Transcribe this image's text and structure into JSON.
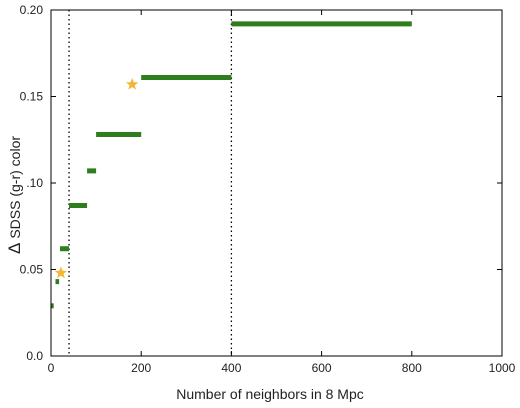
{
  "chart_data": {
    "type": "line",
    "xlabel": "Number of neighbors in 8 Mpc",
    "ylabel_symbol": "Δ",
    "ylabel_text": "SDSS (g-r) color",
    "xlim": [
      0,
      1000
    ],
    "ylim": [
      0,
      0.2
    ],
    "x_ticks": [
      0,
      200,
      400,
      600,
      800,
      1000
    ],
    "x_tick_labels": [
      "0",
      "200",
      "400",
      "600",
      "800",
      "1000"
    ],
    "y_ticks": [
      0,
      0.05,
      0.1,
      0.15,
      0.2
    ],
    "y_tick_labels": [
      "0.0",
      "0.05",
      ".10",
      "0.15",
      "0.20"
    ],
    "grid": false,
    "colors": {
      "segments": "#2e7d1e",
      "stars": "#f2b632",
      "reference_lines": "#000000"
    },
    "segments": [
      {
        "x_start": 0,
        "x_end": 6,
        "y": 0.029
      },
      {
        "x_start": 10,
        "x_end": 18,
        "y": 0.043
      },
      {
        "x_start": 20,
        "x_end": 40,
        "y": 0.062
      },
      {
        "x_start": 40,
        "x_end": 80,
        "y": 0.087
      },
      {
        "x_start": 80,
        "x_end": 100,
        "y": 0.107
      },
      {
        "x_start": 100,
        "x_end": 200,
        "y": 0.128
      },
      {
        "x_start": 200,
        "x_end": 400,
        "y": 0.161
      },
      {
        "x_start": 400,
        "x_end": 800,
        "y": 0.192
      }
    ],
    "stars": [
      {
        "x": 22,
        "y": 0.048
      },
      {
        "x": 180,
        "y": 0.157
      }
    ],
    "reference_lines_x": [
      40,
      400
    ]
  }
}
